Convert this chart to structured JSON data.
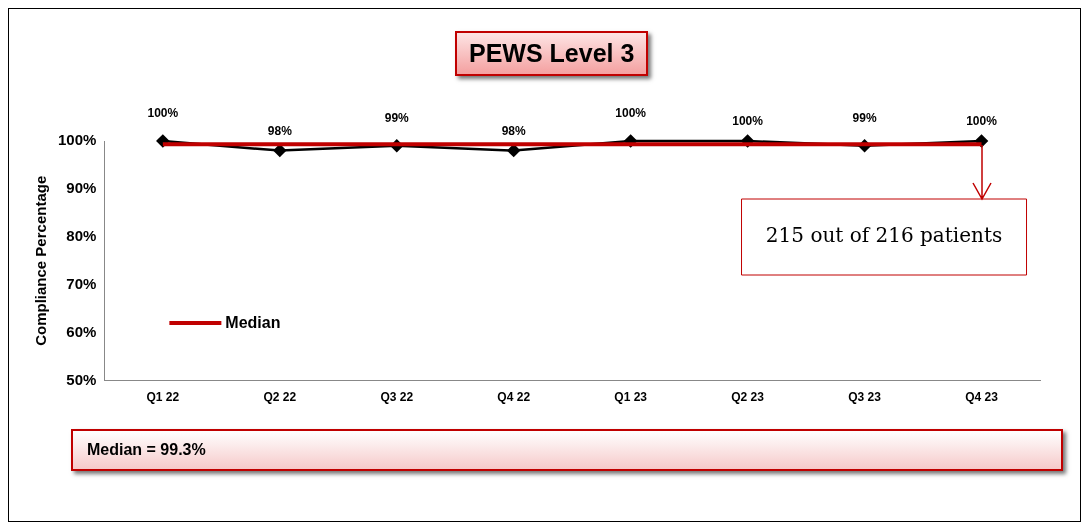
{
  "chart_data": {
    "type": "line",
    "title": "PEWS Level 3",
    "ylabel": "Compliance Percentage",
    "categories": [
      "Q1 22",
      "Q2 22",
      "Q3 22",
      "Q4 22",
      "Q1 23",
      "Q2 23",
      "Q3 23",
      "Q4 23"
    ],
    "series": [
      {
        "color": "#000000",
        "values": [
          100,
          98,
          99,
          98,
          100,
          100,
          99,
          100
        ],
        "value_labels": [
          "100%",
          "98%",
          "99%",
          "98%",
          "100%",
          "100%",
          "99%",
          "100%"
        ],
        "marker": "diamond"
      },
      {
        "name": "Median",
        "color": "#c00000",
        "values": [
          99.3,
          99.3,
          99.3,
          99.3,
          99.3,
          99.3,
          99.3,
          99.3
        ],
        "marker": "none"
      }
    ],
    "ylim": [
      50,
      100
    ],
    "yticks": [
      {
        "value": 50,
        "label": "50%"
      },
      {
        "value": 60,
        "label": "60%"
      },
      {
        "value": 70,
        "label": "70%"
      },
      {
        "value": 80,
        "label": "80%"
      },
      {
        "value": 90,
        "label": "90%"
      },
      {
        "value": 100,
        "label": "100%"
      }
    ],
    "grid": false,
    "legend": "left",
    "annotations": [
      {
        "text": "215 out of 216 patients",
        "x": "Q4 23",
        "y": 100
      },
      "Median = 99.3%"
    ]
  }
}
